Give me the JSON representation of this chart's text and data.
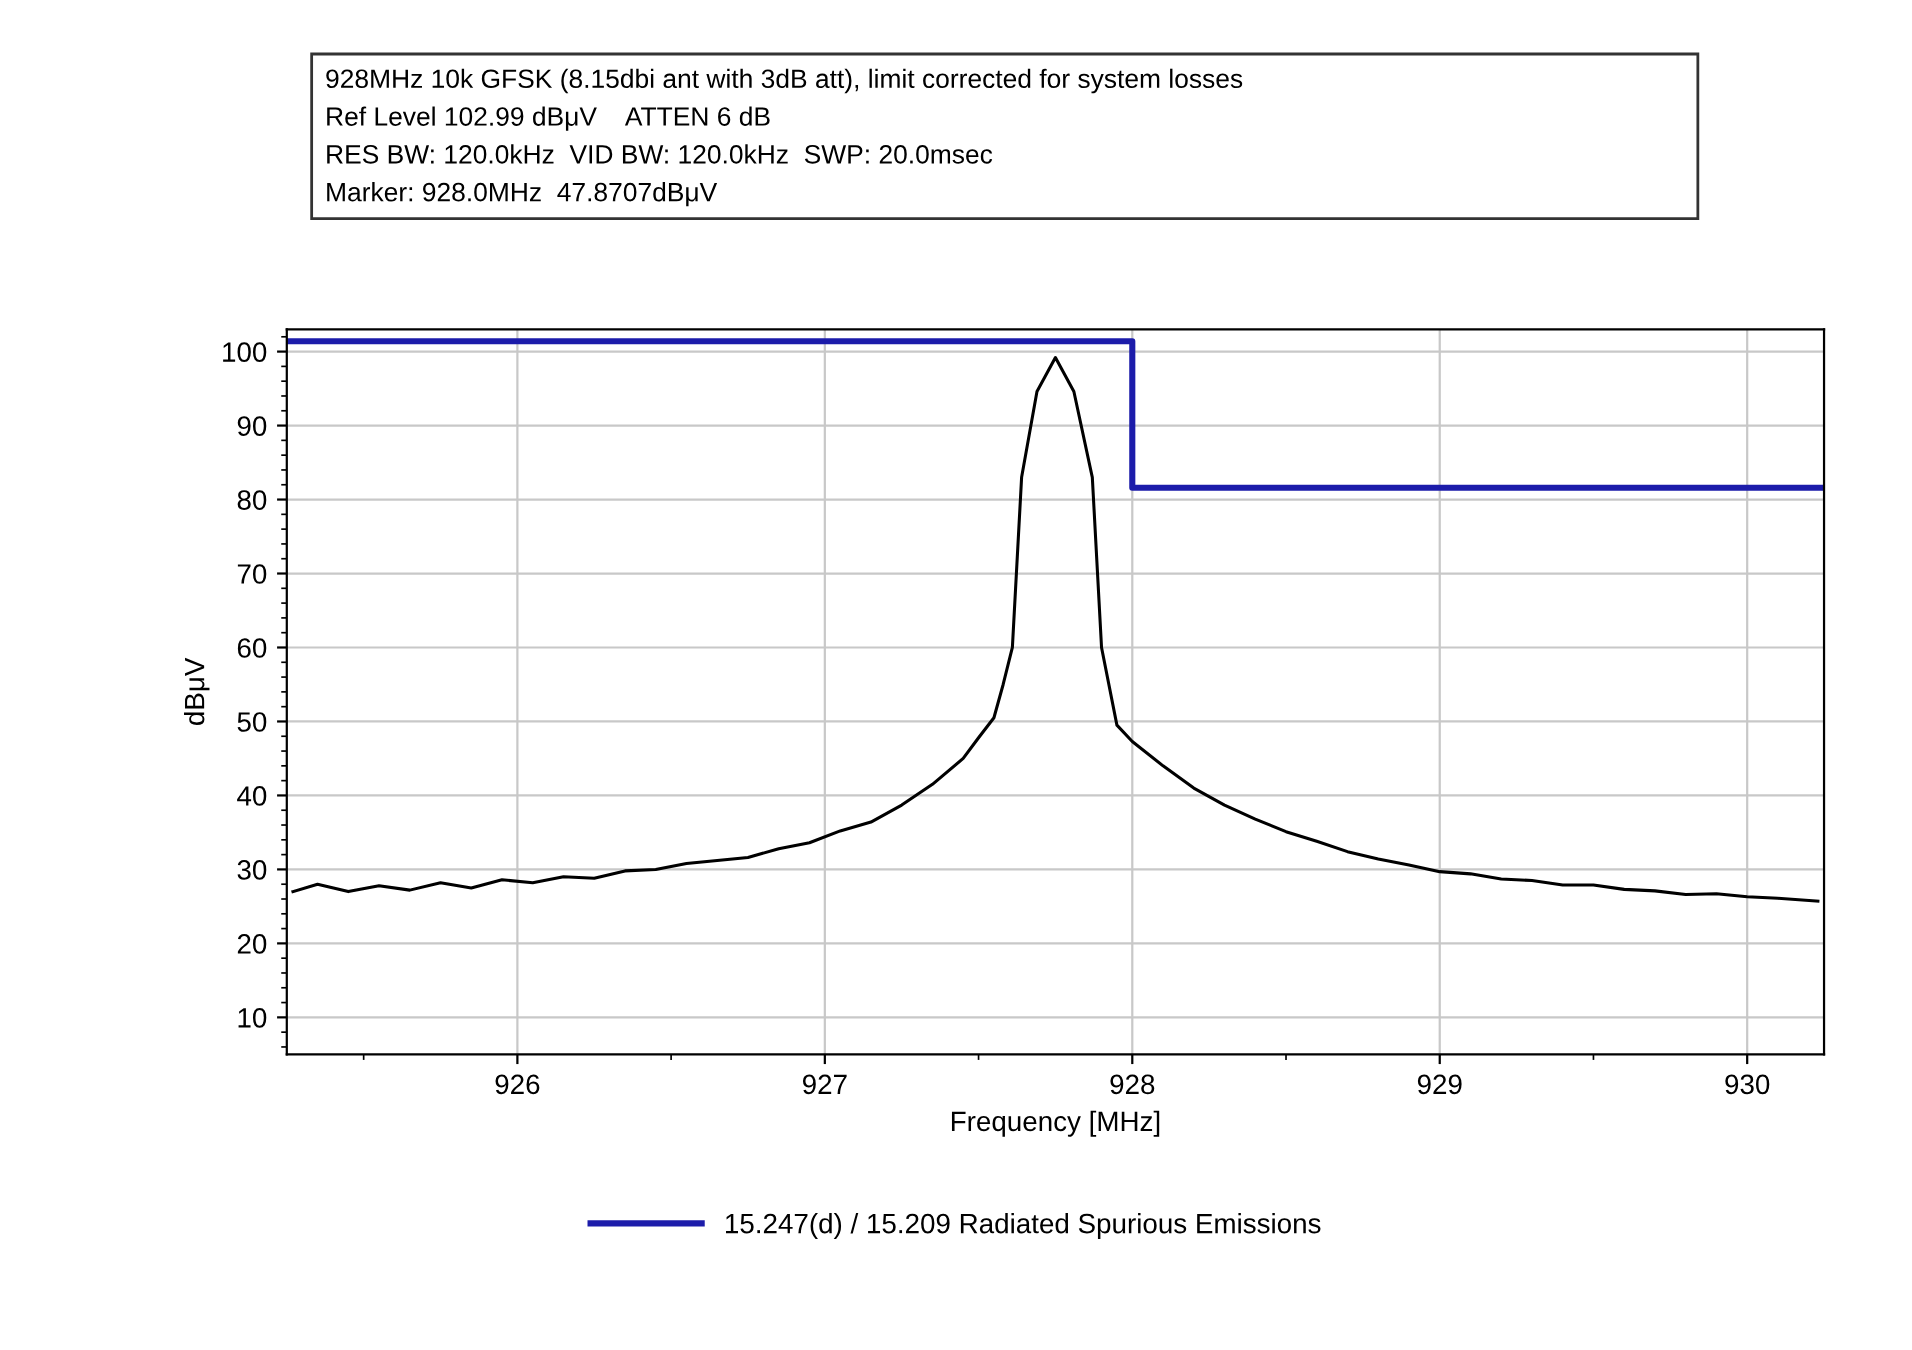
{
  "chart_data": {
    "type": "line",
    "xlabel": "Frequency [MHz]",
    "ylabel": "dBμV",
    "annotations": [
      "928MHz 10k GFSK (8.15dbi ant with 3dB att), limit corrected for system losses",
      "Ref Level 102.99 dBμV    ATTEN 6 dB",
      "RES BW: 120.0kHz  VID BW: 120.0kHz  SWP: 20.0msec",
      "Marker: 928.0MHz  47.8707dBμV"
    ],
    "series": [
      {
        "color": "#000000",
        "x": [
          925.27,
          925.35,
          925.45,
          925.55,
          925.65,
          925.75,
          925.85,
          925.95,
          926.05,
          926.15,
          926.25,
          926.35,
          926.45,
          926.55,
          926.65,
          926.75,
          926.85,
          926.95,
          927.05,
          927.15,
          927.25,
          927.35,
          927.45,
          927.5,
          927.55,
          927.58,
          927.61,
          927.64,
          927.69,
          927.75,
          927.81,
          927.87,
          927.9,
          927.95,
          928.0,
          928.1,
          928.2,
          928.3,
          928.4,
          928.5,
          928.6,
          928.7,
          928.8,
          928.9,
          929.0,
          929.1,
          929.2,
          929.3,
          929.4,
          929.5,
          929.6,
          929.7,
          929.8,
          929.9,
          930.0,
          930.1,
          930.23
        ],
        "values": [
          27,
          28,
          27,
          27.8,
          27.2,
          28.2,
          27.5,
          28.6,
          28.2,
          29,
          28.8,
          29.8,
          30,
          30.8,
          31.2,
          31.6,
          32.8,
          33.6,
          35.2,
          36.4,
          38.7,
          41.5,
          45,
          47.8,
          50.5,
          55,
          60,
          83,
          94.6,
          99.2,
          94.6,
          83,
          60,
          49.5,
          47.3,
          44,
          41,
          38.7,
          36.8,
          35.1,
          33.8,
          32.4,
          31.4,
          30.6,
          29.7,
          29.4,
          28.7,
          28.5,
          27.9,
          27.9,
          27.3,
          27.1,
          26.6,
          26.7,
          26.3,
          26.1,
          25.7
        ]
      },
      {
        "type": "step",
        "name": "15.247(d) / 15.209 Radiated Spurious Emissions",
        "color": "#1c1caa",
        "x": [
          925.25,
          928.0,
          930.25
        ],
        "values": [
          101.4,
          81.6,
          81.6
        ]
      }
    ],
    "xlim": [
      925.25,
      930.25
    ],
    "ylim": [
      5,
      103
    ],
    "xticks": [
      926,
      927,
      928,
      929,
      930
    ],
    "yticks": [
      10,
      20,
      30,
      40,
      50,
      60,
      70,
      80,
      90,
      100
    ],
    "grid": true,
    "legend": "bottom"
  }
}
